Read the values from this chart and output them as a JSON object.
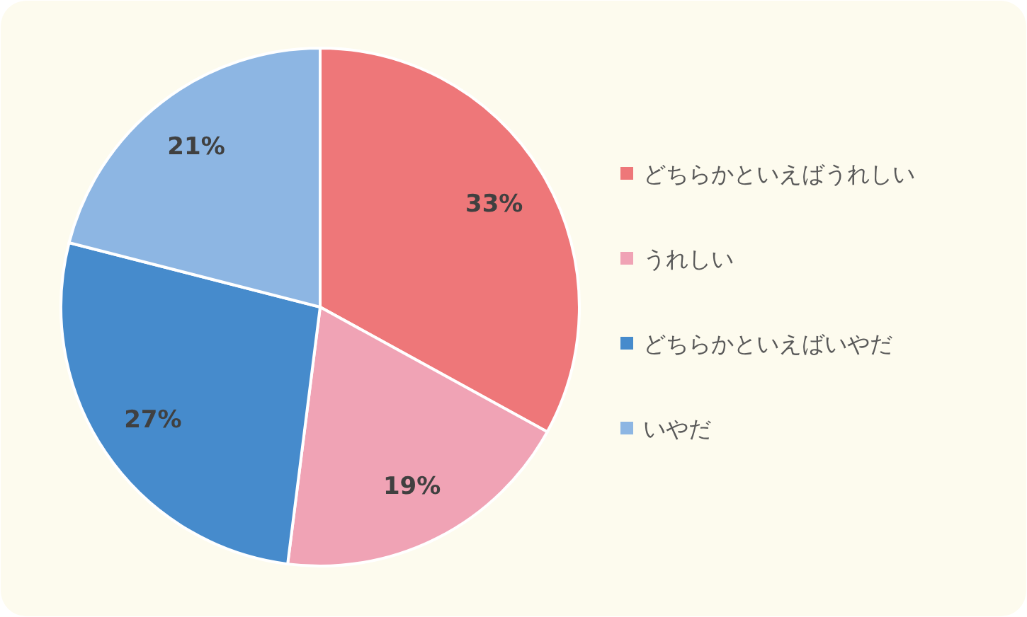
{
  "chart_data": {
    "type": "pie",
    "categories": [
      "どちらかといえばうれしい",
      "うれしい",
      "どちらかといえばいやだ",
      "いやだ"
    ],
    "values": [
      33,
      19,
      27,
      21
    ],
    "colors": [
      "#ee7779",
      "#f0a3b5",
      "#468bcc",
      "#8db6e3"
    ],
    "value_labels": [
      "33%",
      "19%",
      "27%",
      "21%"
    ],
    "legend": "right"
  }
}
